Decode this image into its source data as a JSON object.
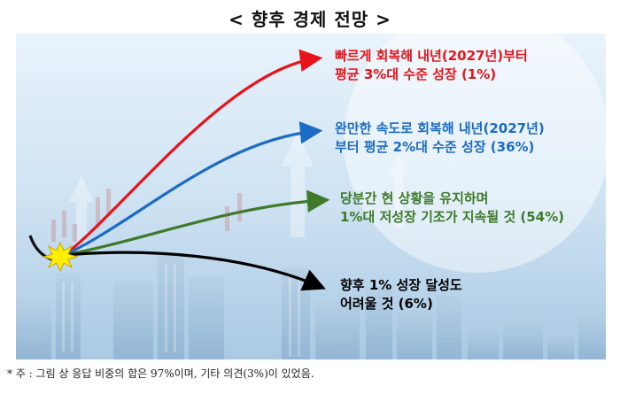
{
  "title": "< 향후 경제 전망 >",
  "scenarios": [
    {
      "line1": "빠르게 회복해 내년(2027년)부터",
      "line2": "평균 3%대 수준 성장 (1%)",
      "color": "#e8141b"
    },
    {
      "line1": "완만한 속도로 회복해 내년(2027년)",
      "line2": "부터 평균 2%대 수준 성장 (36%)",
      "color": "#1c6bc4"
    },
    {
      "line1": "당분간 현 상황을 유지하며",
      "line2": "1%대 저성장 기조가 지속될 것 (54%)",
      "color": "#3e7a2a"
    },
    {
      "line1": "향후 1% 성장 달성도",
      "line2": "어려울 것 (6%)",
      "color": "#000000"
    }
  ],
  "footnote": "* 주 : 그림 상 응답 비중의 합은 97%이며, 기타 의견(3%)이 있었음."
}
